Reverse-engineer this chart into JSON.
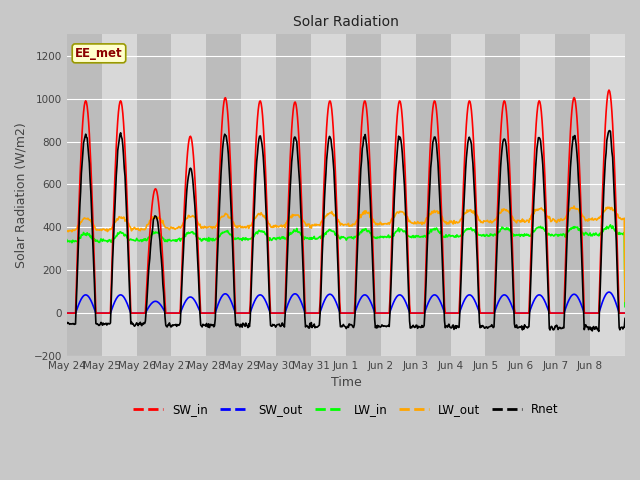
{
  "title": "Solar Radiation",
  "xlabel": "Time",
  "ylabel": "Solar Radiation (W/m2)",
  "ylim": [
    -200,
    1300
  ],
  "yticks": [
    -200,
    0,
    200,
    400,
    600,
    800,
    1000,
    1200
  ],
  "annotation_text": "EE_met",
  "num_days": 16,
  "x_tick_labels": [
    "May 24",
    "May 25",
    "May 26",
    "May 27",
    "May 28",
    "May 29",
    "May 30",
    "May 31",
    "Jun 1",
    "Jun 2",
    "Jun 3",
    "Jun 4",
    "Jun 5",
    "Jun 6",
    "Jun 7",
    "Jun 8"
  ],
  "fig_bg_color": "#c8c8c8",
  "plot_bg_color": "#d8d8d8",
  "stripe_color": "#bcbcbc",
  "grid_color": "#ffffff",
  "SW_in_peaks": [
    990,
    990,
    580,
    825,
    1005,
    990,
    985,
    990,
    990,
    990,
    990,
    990,
    990,
    990,
    1005,
    1040
  ],
  "SW_out_peaks": [
    85,
    85,
    55,
    75,
    90,
    85,
    90,
    88,
    85,
    85,
    85,
    85,
    85,
    85,
    88,
    98
  ],
  "LW_in_base": 340,
  "LW_out_base": 385,
  "Rnet_night": -55,
  "line_width": 1.2
}
